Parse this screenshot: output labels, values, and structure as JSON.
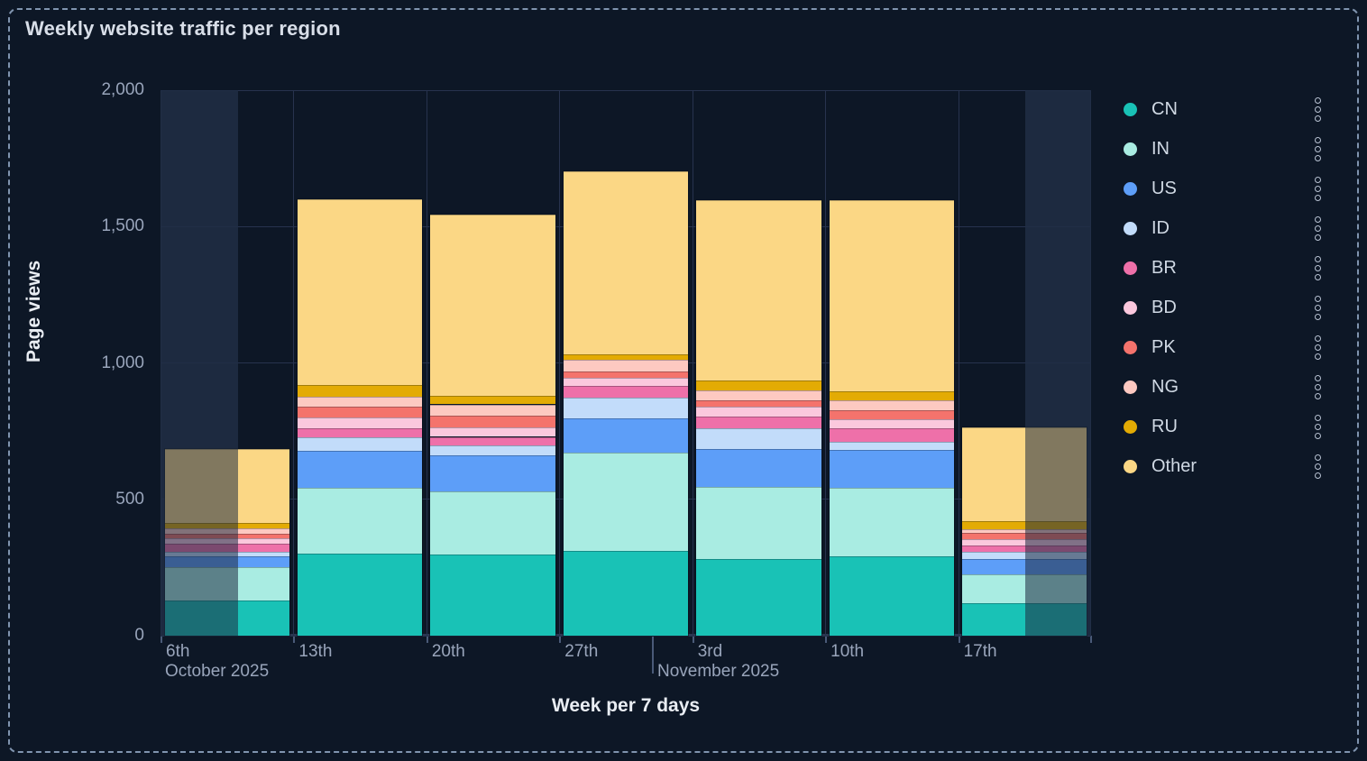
{
  "panel": {
    "title": "Weekly website traffic per region"
  },
  "chart_data": {
    "type": "bar",
    "stacked": true,
    "title": "Weekly website traffic per region",
    "xlabel": "Week per 7 days",
    "ylabel": "Page views",
    "ylim": [
      0,
      2000
    ],
    "yticks": [
      0,
      500,
      1000,
      1500,
      2000
    ],
    "ytick_labels": [
      "0",
      "500",
      "1,000",
      "1,500",
      "2,000"
    ],
    "categories": [
      "6th",
      "13th",
      "20th",
      "27th",
      "3rd",
      "10th",
      "17th"
    ],
    "month_labels": [
      "October 2025",
      "November 2025"
    ],
    "legend_position": "right",
    "grid": true,
    "series": [
      {
        "name": "CN",
        "color": "#19c2b6",
        "values": [
          129,
          301,
          298,
          312,
          281,
          290,
          118
        ]
      },
      {
        "name": "IN",
        "color": "#a9ece2",
        "values": [
          121,
          242,
          231,
          360,
          264,
          253,
          108
        ]
      },
      {
        "name": "US",
        "color": "#5d9ef8",
        "values": [
          42,
          135,
          132,
          125,
          140,
          138,
          55
        ]
      },
      {
        "name": "ID",
        "color": "#c2dcfa",
        "values": [
          16,
          48,
          35,
          77,
          77,
          30,
          25
        ]
      },
      {
        "name": "BR",
        "color": "#ee70a9",
        "values": [
          29,
          35,
          33,
          41,
          42,
          50,
          25
        ]
      },
      {
        "name": "BD",
        "color": "#fbc8dd",
        "values": [
          19,
          40,
          36,
          30,
          35,
          33,
          22
        ]
      },
      {
        "name": "PK",
        "color": "#f4736c",
        "values": [
          19,
          40,
          42,
          25,
          25,
          33,
          25
        ]
      },
      {
        "name": "NG",
        "color": "#fdc9c1",
        "values": [
          20,
          36,
          41,
          42,
          36,
          36,
          13
        ]
      },
      {
        "name": "RU",
        "color": "#e3ab04",
        "values": [
          19,
          42,
          31,
          20,
          37,
          32,
          28
        ]
      },
      {
        "name": "Other",
        "color": "#fbd785",
        "values": [
          269,
          682,
          666,
          672,
          659,
          703,
          344
        ]
      }
    ]
  }
}
